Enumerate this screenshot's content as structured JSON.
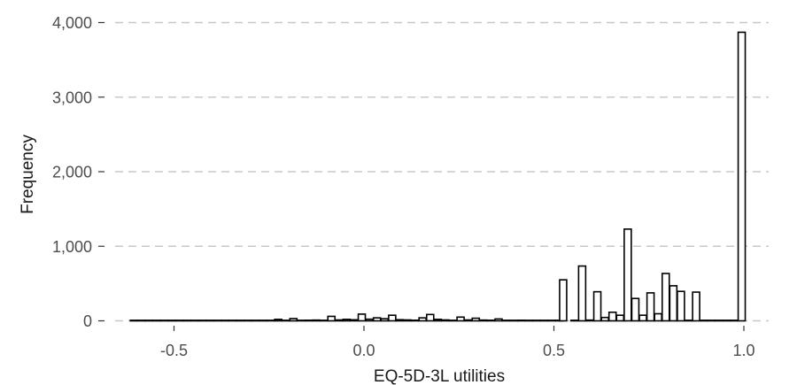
{
  "chart_data": {
    "type": "bar",
    "xlabel": "EQ-5D-3L utilities",
    "ylabel": "Frequency",
    "xlim": [
      -0.65,
      1.07
    ],
    "ylim": [
      0,
      4000
    ],
    "x_ticks": [
      -0.5,
      0.0,
      0.5,
      1.0
    ],
    "x_tick_labels": [
      "-0.5",
      "0.0",
      "0.5",
      "1.0"
    ],
    "y_ticks": [
      0,
      1000,
      2000,
      3000,
      4000
    ],
    "y_tick_labels": [
      "0",
      "1,000",
      "2,000",
      "3,000",
      "4,000"
    ],
    "grid": true,
    "bin_width": 0.02,
    "bins": [
      {
        "x": -0.605,
        "count": 4
      },
      {
        "x": -0.585,
        "count": 0
      },
      {
        "x": -0.565,
        "count": 0
      },
      {
        "x": -0.545,
        "count": 2
      },
      {
        "x": -0.525,
        "count": 0
      },
      {
        "x": -0.505,
        "count": 5
      },
      {
        "x": -0.485,
        "count": 0
      },
      {
        "x": -0.465,
        "count": 2
      },
      {
        "x": -0.445,
        "count": 0
      },
      {
        "x": -0.425,
        "count": 3
      },
      {
        "x": -0.405,
        "count": 0
      },
      {
        "x": -0.385,
        "count": 2
      },
      {
        "x": -0.365,
        "count": 0
      },
      {
        "x": -0.345,
        "count": 6
      },
      {
        "x": -0.325,
        "count": 0
      },
      {
        "x": -0.305,
        "count": 5
      },
      {
        "x": -0.285,
        "count": 0
      },
      {
        "x": -0.265,
        "count": 3
      },
      {
        "x": -0.245,
        "count": 0
      },
      {
        "x": -0.225,
        "count": 20
      },
      {
        "x": -0.205,
        "count": 4
      },
      {
        "x": -0.185,
        "count": 30
      },
      {
        "x": -0.165,
        "count": 0
      },
      {
        "x": -0.145,
        "count": 8
      },
      {
        "x": -0.125,
        "count": 10
      },
      {
        "x": -0.105,
        "count": 6
      },
      {
        "x": -0.085,
        "count": 60
      },
      {
        "x": -0.065,
        "count": 12
      },
      {
        "x": -0.045,
        "count": 20
      },
      {
        "x": -0.025,
        "count": 14
      },
      {
        "x": -0.005,
        "count": 90
      },
      {
        "x": 0.015,
        "count": 22
      },
      {
        "x": 0.035,
        "count": 40
      },
      {
        "x": 0.055,
        "count": 28
      },
      {
        "x": 0.075,
        "count": 75
      },
      {
        "x": 0.095,
        "count": 15
      },
      {
        "x": 0.115,
        "count": 12
      },
      {
        "x": 0.135,
        "count": 8
      },
      {
        "x": 0.155,
        "count": 40
      },
      {
        "x": 0.175,
        "count": 85
      },
      {
        "x": 0.195,
        "count": 20
      },
      {
        "x": 0.215,
        "count": 12
      },
      {
        "x": 0.235,
        "count": 6
      },
      {
        "x": 0.255,
        "count": 50
      },
      {
        "x": 0.275,
        "count": 12
      },
      {
        "x": 0.295,
        "count": 35
      },
      {
        "x": 0.315,
        "count": 10
      },
      {
        "x": 0.335,
        "count": 8
      },
      {
        "x": 0.355,
        "count": 25
      },
      {
        "x": 0.375,
        "count": 6
      },
      {
        "x": 0.395,
        "count": 5
      },
      {
        "x": 0.415,
        "count": 8
      },
      {
        "x": 0.435,
        "count": 5
      },
      {
        "x": 0.455,
        "count": 4
      },
      {
        "x": 0.475,
        "count": 3
      },
      {
        "x": 0.495,
        "count": 2
      },
      {
        "x": 0.515,
        "count": 2
      },
      {
        "x": 0.525,
        "count": 550
      },
      {
        "x": 0.555,
        "count": 5
      },
      {
        "x": 0.575,
        "count": 735
      },
      {
        "x": 0.595,
        "count": 10
      },
      {
        "x": 0.615,
        "count": 390
      },
      {
        "x": 0.635,
        "count": 45
      },
      {
        "x": 0.655,
        "count": 115
      },
      {
        "x": 0.675,
        "count": 75
      },
      {
        "x": 0.695,
        "count": 1230
      },
      {
        "x": 0.715,
        "count": 300
      },
      {
        "x": 0.735,
        "count": 75
      },
      {
        "x": 0.755,
        "count": 375
      },
      {
        "x": 0.775,
        "count": 95
      },
      {
        "x": 0.795,
        "count": 635
      },
      {
        "x": 0.815,
        "count": 470
      },
      {
        "x": 0.835,
        "count": 395
      },
      {
        "x": 0.855,
        "count": 5
      },
      {
        "x": 0.875,
        "count": 385
      },
      {
        "x": 0.895,
        "count": 2
      },
      {
        "x": 0.915,
        "count": 0
      },
      {
        "x": 0.935,
        "count": 0
      },
      {
        "x": 0.955,
        "count": 0
      },
      {
        "x": 0.975,
        "count": 0
      },
      {
        "x": 0.995,
        "count": 3870
      }
    ]
  }
}
